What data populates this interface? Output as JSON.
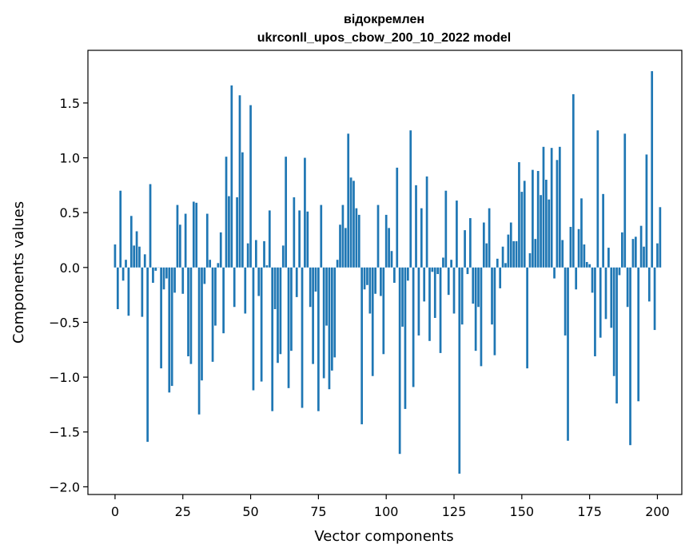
{
  "chart_data": {
    "type": "bar",
    "title_line1": "відокремлен",
    "title_line2": "ukrconll_upos_cbow_200_10_2022 model",
    "xlabel": "Vector components",
    "ylabel": "Components values",
    "xlim": [
      -10,
      209
    ],
    "ylim": [
      -2.07,
      1.98
    ],
    "xticks": [
      0,
      25,
      50,
      75,
      100,
      125,
      150,
      175,
      200
    ],
    "yticks": [
      -2.0,
      -1.5,
      -1.0,
      -0.5,
      0.0,
      0.5,
      1.0,
      1.5
    ],
    "ytick_labels": [
      "−2.0",
      "−1.5",
      "−1.0",
      "−0.5",
      "0.0",
      "0.5",
      "1.0",
      "1.5"
    ],
    "bar_color": "#1f77b4",
    "values": [
      0.21,
      -0.38,
      0.7,
      -0.12,
      0.07,
      -0.44,
      0.47,
      0.2,
      0.33,
      0.19,
      -0.45,
      0.12,
      -1.59,
      0.76,
      -0.14,
      -0.03,
      0.0,
      -0.92,
      -0.2,
      -0.1,
      -1.14,
      -1.08,
      -0.23,
      0.57,
      0.39,
      -0.24,
      0.49,
      -0.81,
      -0.88,
      0.6,
      0.59,
      -1.34,
      -1.03,
      -0.15,
      0.49,
      0.07,
      -0.86,
      -0.53,
      0.04,
      0.32,
      -0.6,
      1.01,
      0.65,
      1.66,
      -0.36,
      0.64,
      1.57,
      1.05,
      -0.42,
      0.22,
      1.48,
      -1.12,
      0.25,
      -0.26,
      -1.04,
      0.24,
      0.02,
      0.52,
      -1.31,
      -0.38,
      -0.87,
      -0.79,
      0.2,
      1.01,
      -1.1,
      -0.76,
      0.64,
      -0.27,
      0.52,
      -1.28,
      1.0,
      0.51,
      -0.36,
      -0.88,
      -0.22,
      -1.31,
      0.57,
      -1.01,
      -0.53,
      -1.11,
      -0.94,
      -0.82,
      0.07,
      0.39,
      0.57,
      0.36,
      1.22,
      0.82,
      0.79,
      0.54,
      0.48,
      -1.43,
      -0.2,
      -0.16,
      -0.42,
      -0.99,
      -0.24,
      0.57,
      -0.26,
      -0.79,
      0.48,
      0.36,
      0.15,
      -0.14,
      0.91,
      -1.7,
      -0.54,
      -1.29,
      -0.12,
      1.25,
      -1.09,
      0.75,
      -0.62,
      0.54,
      -0.31,
      0.83,
      -0.67,
      -0.04,
      -0.46,
      -0.06,
      -0.78,
      0.09,
      0.7,
      -0.25,
      0.07,
      -0.42,
      0.61,
      -1.88,
      -0.52,
      0.34,
      -0.06,
      0.45,
      -0.33,
      -0.76,
      -0.36,
      -0.9,
      0.41,
      0.22,
      0.54,
      -0.52,
      -0.8,
      0.08,
      -0.19,
      0.19,
      0.04,
      0.3,
      0.41,
      0.24,
      0.24,
      0.96,
      0.69,
      0.79,
      -0.92,
      0.13,
      0.89,
      0.26,
      0.88,
      0.66,
      1.1,
      0.8,
      0.62,
      1.09,
      -0.1,
      0.98,
      1.1,
      0.25,
      -0.62,
      -1.58,
      0.37,
      1.58,
      -0.2,
      0.35,
      0.63,
      0.21,
      0.05,
      0.03,
      -0.23,
      -0.81,
      1.25,
      -0.64,
      0.67,
      -0.47,
      0.18,
      -0.55,
      -0.99,
      -1.24,
      -0.07,
      0.32,
      1.22,
      -0.36,
      -1.62,
      0.26,
      0.28,
      -1.22,
      0.38,
      0.19,
      1.03,
      -0.31,
      1.79,
      -0.57,
      0.22,
      0.55
    ]
  }
}
